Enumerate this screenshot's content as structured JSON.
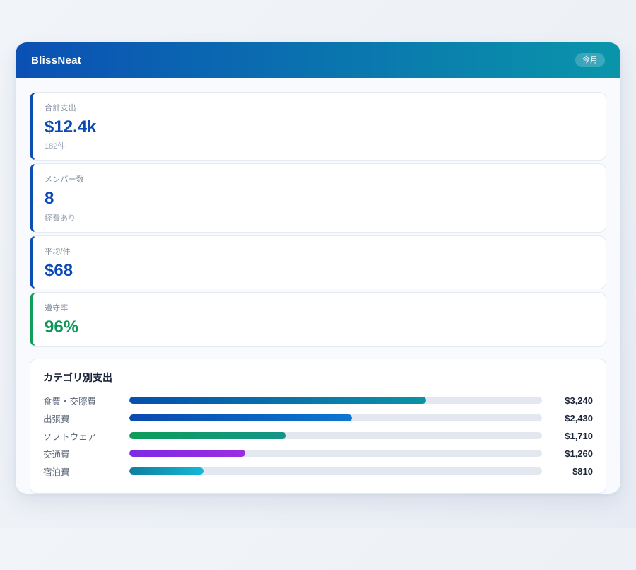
{
  "header": {
    "app_name": "BlissNeat",
    "period_badge": "今月",
    "gradient_from": "#0b50b4",
    "gradient_to": "#0a95aa"
  },
  "stats": [
    {
      "label": "合計支出",
      "value": "$12.4k",
      "sub": "182件",
      "accent": "#0b4fb3",
      "value_color": "#0b49b4"
    },
    {
      "label": "メンバー数",
      "value": "8",
      "sub": "経費あり",
      "accent": "#0b4fb3",
      "value_color": "#0b49b4"
    },
    {
      "label": "平均/件",
      "value": "$68",
      "sub": "",
      "accent": "#0b4fb3",
      "value_color": "#0b49b4"
    },
    {
      "label": "遵守率",
      "value": "96%",
      "sub": "",
      "accent": "#0f9d58",
      "value_color": "#0e9659"
    }
  ],
  "categories": {
    "title": "カテゴリ別支出",
    "rows": [
      {
        "label": "食費・交際費",
        "amount": "$3,240",
        "value": 3240,
        "percent": 72,
        "bar_from": "#0450ae",
        "bar_to": "#0c92a6"
      },
      {
        "label": "出張費",
        "amount": "$2,430",
        "value": 2430,
        "percent": 54,
        "bar_from": "#0a4ab0",
        "bar_to": "#0b76d1"
      },
      {
        "label": "ソフトウェア",
        "amount": "$1,710",
        "value": 1710,
        "percent": 38,
        "bar_from": "#0e9e58",
        "bar_to": "#139488"
      },
      {
        "label": "交通費",
        "amount": "$1,260",
        "value": 1260,
        "percent": 28,
        "bar_from": "#7c2ae4",
        "bar_to": "#9c2ce2"
      },
      {
        "label": "宿泊費",
        "amount": "$810",
        "value": 810,
        "percent": 18,
        "bar_from": "#0e7f9e",
        "bar_to": "#15b8d6"
      }
    ]
  },
  "chart_data": {
    "type": "bar",
    "orientation": "horizontal",
    "title": "カテゴリ別支出",
    "categories": [
      "食費・交際費",
      "出張費",
      "ソフトウェア",
      "交通費",
      "宿泊費"
    ],
    "values": [
      3240,
      2430,
      1710,
      1260,
      810
    ],
    "value_labels": [
      "$3,240",
      "$2,430",
      "$1,710",
      "$1,260",
      "$810"
    ],
    "xlim": [
      0,
      4500
    ],
    "grid": false,
    "legend": false
  }
}
